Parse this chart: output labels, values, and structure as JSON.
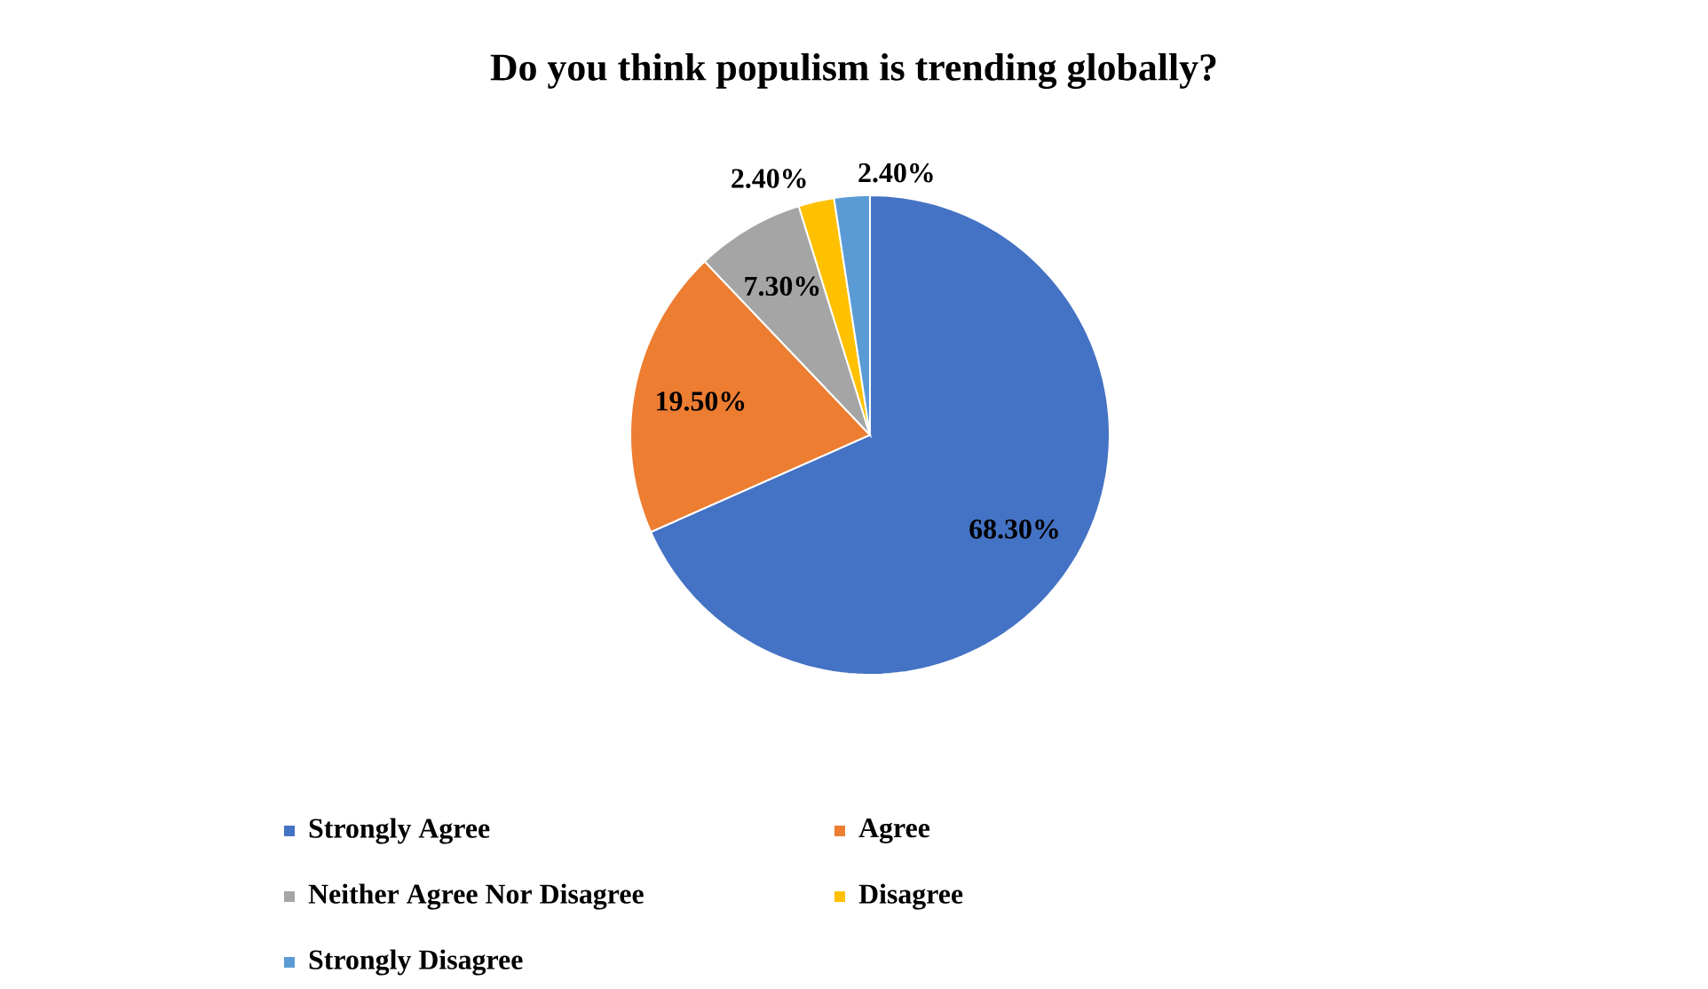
{
  "chart_data": {
    "type": "pie",
    "title": "Do you think populism is trending globally?",
    "categories": [
      "Strongly Agree",
      "Agree",
      "Neither Agree Nor Disagree",
      "Disagree",
      "Strongly Disagree"
    ],
    "values": [
      68.3,
      19.5,
      7.3,
      2.4,
      2.4
    ],
    "colors": [
      "#4472c4",
      "#ed7d31",
      "#a5a5a5",
      "#ffc000",
      "#5b9bd5"
    ],
    "value_labels": [
      "68.30%",
      "19.50%",
      "7.30%",
      "2.40%",
      "2.40%"
    ],
    "legend": "bottom"
  }
}
